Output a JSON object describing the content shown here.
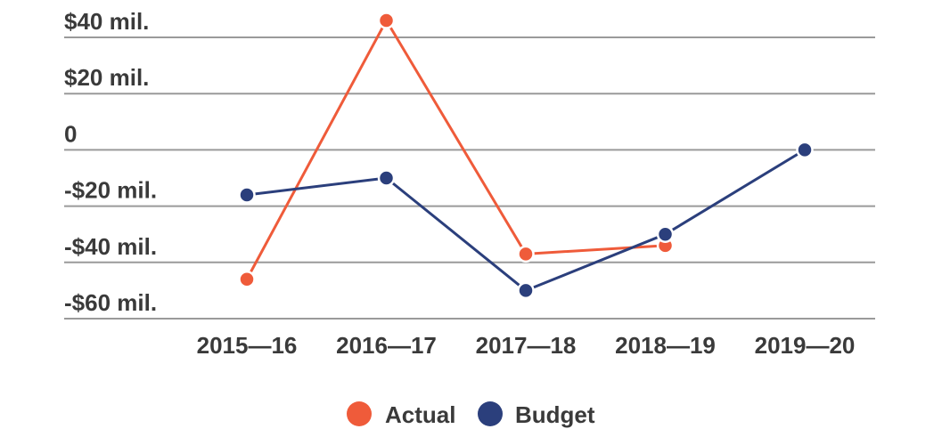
{
  "chart_data": {
    "type": "line",
    "categories": [
      "2015—16",
      "2016—17",
      "2017—18",
      "2018—19",
      "2019—20"
    ],
    "y_tick_labels": [
      "$40 mil.",
      "$20 mil.",
      "0",
      "-$20 mil.",
      "-$40 mil.",
      "-$60 mil."
    ],
    "y_ticks": [
      40,
      20,
      0,
      -20,
      -40,
      -60
    ],
    "ylim": [
      -60,
      40
    ],
    "grid": true,
    "legend_position": "bottom",
    "series": [
      {
        "name": "Actual",
        "color": "#ef5b3a",
        "values": [
          -46,
          46,
          -37,
          -34,
          null
        ]
      },
      {
        "name": "Budget",
        "color": "#2b3f7c",
        "values": [
          -16,
          -10,
          -50,
          -30,
          0
        ]
      }
    ]
  }
}
